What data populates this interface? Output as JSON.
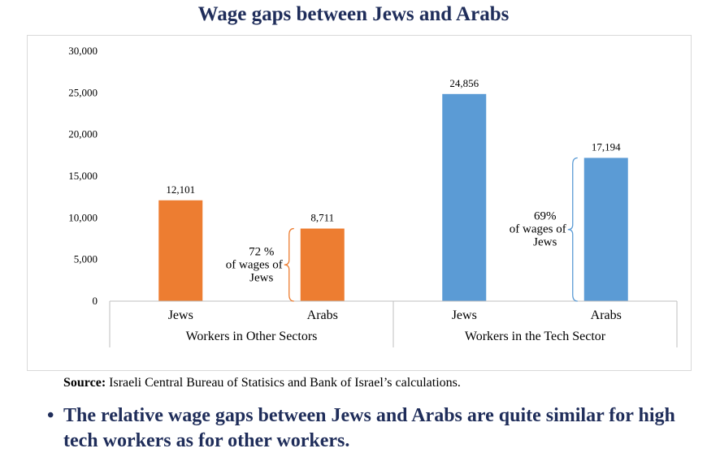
{
  "chart_data": {
    "type": "bar",
    "title": "Wage gaps between Jews and Arabs",
    "ylim": [
      0,
      30000
    ],
    "yticks": [
      0,
      5000,
      10000,
      15000,
      20000,
      25000,
      30000
    ],
    "ytick_labels": [
      "0",
      "5,000",
      "10,000",
      "15,000",
      "20,000",
      "25,000",
      "30,000"
    ],
    "groups": [
      {
        "label": "Workers in Other Sectors",
        "color": "#ed7d31",
        "bars": [
          {
            "category": "Jews",
            "value": 12101,
            "label": "12,101"
          },
          {
            "category": "Arabs",
            "value": 8711,
            "label": "8,711"
          }
        ],
        "annotation": [
          "72 %",
          "of wages of",
          "Jews"
        ]
      },
      {
        "label": "Workers in the Tech Sector",
        "color": "#5b9bd5",
        "bars": [
          {
            "category": "Jews",
            "value": 24856,
            "label": "24,856"
          },
          {
            "category": "Arabs",
            "value": 17194,
            "label": "17,194"
          }
        ],
        "annotation": [
          "69%",
          "of wages of",
          "Jews"
        ]
      }
    ],
    "grid": false
  },
  "source": {
    "label": "Source:",
    "text": " Israeli Central Bureau of Statisics and Bank of Israel’s calculations."
  },
  "bullet": {
    "symbol": "•",
    "text": "The relative wage gaps between Jews and Arabs are quite similar for high tech workers as for other workers."
  },
  "colors": {
    "title": "#1f2d5a",
    "orange": "#ed7d31",
    "blue": "#5b9bd5"
  }
}
